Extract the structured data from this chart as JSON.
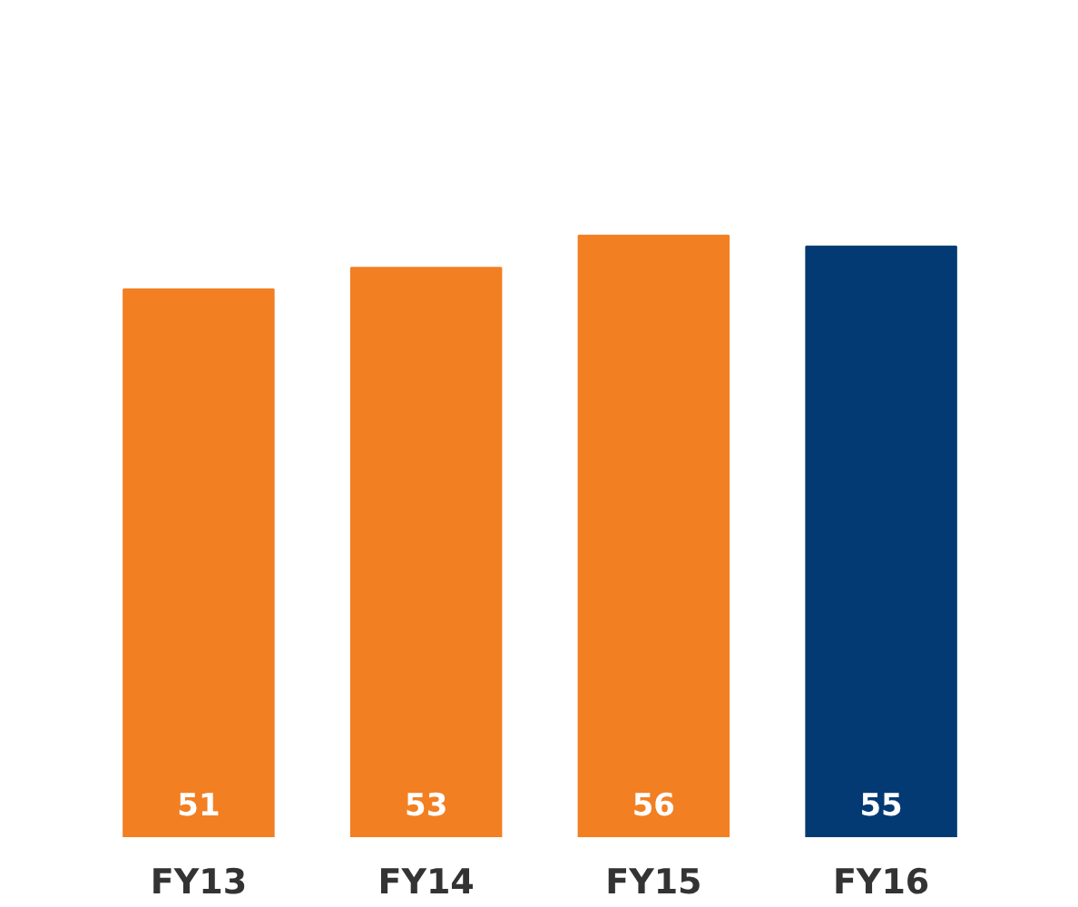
{
  "chart_data": {
    "type": "bar",
    "categories": [
      "FY13",
      "FY14",
      "FY15",
      "FY16"
    ],
    "values": [
      51,
      53,
      56,
      55
    ],
    "colors": [
      "#f27f22",
      "#f27f22",
      "#f27f22",
      "#043a73"
    ],
    "data_labels": true,
    "grid": false
  }
}
